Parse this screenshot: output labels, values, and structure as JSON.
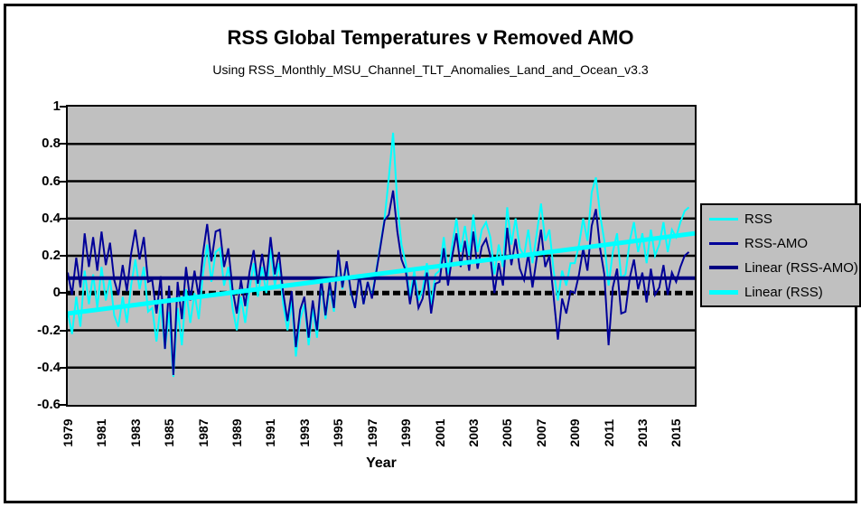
{
  "figure": {
    "title": "RSS Global Temperatures v Removed AMO",
    "subtitle": "Using RSS_Monthly_MSU_Channel_TLT_Anomalies_Land_and_Ocean_v3.3",
    "x_axis_title": "Year"
  },
  "colors": {
    "plot_background": "#C0C0C0",
    "legend_background": "#C0C0C0",
    "gridline": "#000000",
    "zero_line": "#000000",
    "rss": "#00FFFF",
    "rss_amo": "#000099",
    "linear_rss_amo": "#000080",
    "linear_rss": "#00FFFF",
    "frame_border": "#000000"
  },
  "legend": {
    "items": [
      {
        "label": "RSS",
        "color": "#00FFFF",
        "thickness": 3
      },
      {
        "label": "RSS-AMO",
        "color": "#000099",
        "thickness": 3
      },
      {
        "label": "Linear (RSS-AMO)",
        "color": "#000080",
        "thickness": 4
      },
      {
        "label": "Linear (RSS)",
        "color": "#00FFFF",
        "thickness": 5
      }
    ]
  },
  "chart_data": {
    "type": "line",
    "title": "RSS Global Temperatures v Removed AMO",
    "subtitle": "Using RSS_Monthly_MSU_Channel_TLT_Anomalies_Land_and_Ocean_v3.3",
    "xlabel": "Year",
    "ylabel": "",
    "ylim": [
      -0.6,
      1
    ],
    "xlim": [
      1979,
      2016.1
    ],
    "grid": true,
    "legend_position": "right",
    "ytick_labels": [
      "1",
      "0.8",
      "0.6",
      "0.4",
      "0.2",
      "0",
      "-0.2",
      "-0.4",
      "-0.6"
    ],
    "ytick_values": [
      1,
      0.8,
      0.6,
      0.4,
      0.2,
      0,
      -0.2,
      -0.4,
      -0.6
    ],
    "gridline_values": [
      0.8,
      0.6,
      0.4,
      0.2,
      -0.2,
      -0.4
    ],
    "zero_line": {
      "value": 0,
      "style": "thick-dashed-black"
    },
    "xtick_years": [
      1979,
      1981,
      1983,
      1985,
      1987,
      1989,
      1991,
      1993,
      1995,
      1997,
      1999,
      2001,
      2003,
      2005,
      2007,
      2009,
      2011,
      2013,
      2015
    ],
    "x_start": 1979,
    "x_step_years": 0.25,
    "resolution": "quarterly estimates read from plotted monthly curves",
    "series": [
      {
        "name": "RSS",
        "color": "#00FFFF",
        "width": 2,
        "values": [
          -0.1,
          -0.22,
          -0.02,
          -0.18,
          0.12,
          -0.06,
          0.1,
          -0.08,
          0.14,
          -0.04,
          0.08,
          -0.12,
          -0.18,
          -0.02,
          -0.16,
          0.04,
          0.18,
          0.02,
          0.14,
          -0.1,
          -0.08,
          -0.26,
          -0.06,
          -0.3,
          -0.1,
          -0.45,
          -0.08,
          -0.28,
          0.02,
          -0.16,
          0.0,
          -0.14,
          0.1,
          0.26,
          0.06,
          0.22,
          0.24,
          0.04,
          0.14,
          -0.08,
          -0.2,
          -0.02,
          -0.16,
          0.02,
          0.16,
          -0.02,
          0.14,
          0.0,
          0.24,
          0.04,
          0.16,
          -0.06,
          -0.2,
          -0.04,
          -0.34,
          -0.14,
          -0.06,
          -0.28,
          -0.08,
          -0.24,
          0.06,
          -0.14,
          0.04,
          -0.1,
          0.22,
          0.02,
          0.16,
          0.0,
          -0.08,
          0.1,
          -0.06,
          0.06,
          -0.02,
          0.12,
          0.26,
          0.4,
          0.62,
          0.86,
          0.48,
          0.26,
          0.16,
          -0.02,
          0.12,
          -0.04,
          0.02,
          0.16,
          -0.06,
          0.1,
          0.12,
          0.3,
          0.1,
          0.26,
          0.4,
          0.22,
          0.36,
          0.2,
          0.42,
          0.22,
          0.34,
          0.38,
          0.3,
          0.1,
          0.26,
          0.14,
          0.46,
          0.26,
          0.4,
          0.24,
          0.2,
          0.34,
          0.16,
          0.32,
          0.48,
          0.28,
          0.34,
          0.12,
          -0.04,
          0.12,
          0.04,
          0.16,
          0.16,
          0.26,
          0.4,
          0.28,
          0.54,
          0.62,
          0.42,
          0.28,
          0.04,
          0.22,
          0.32,
          0.08,
          0.1,
          0.28,
          0.38,
          0.22,
          0.32,
          0.16,
          0.34,
          0.2,
          0.26,
          0.38,
          0.22,
          0.34,
          0.3,
          0.38,
          0.44,
          0.46
        ]
      },
      {
        "name": "RSS-AMO",
        "color": "#000099",
        "width": 2,
        "values": [
          0.11,
          -0.01,
          0.19,
          0.03,
          0.32,
          0.14,
          0.3,
          0.12,
          0.33,
          0.15,
          0.27,
          0.07,
          -0.01,
          0.15,
          0.01,
          0.21,
          0.34,
          0.18,
          0.3,
          0.06,
          0.07,
          -0.11,
          0.09,
          -0.3,
          0.04,
          -0.44,
          0.06,
          -0.14,
          0.14,
          -0.04,
          0.12,
          -0.02,
          0.21,
          0.37,
          0.17,
          0.33,
          0.34,
          0.14,
          0.24,
          0.02,
          -0.11,
          0.07,
          -0.07,
          0.11,
          0.23,
          0.05,
          0.21,
          0.07,
          0.3,
          0.1,
          0.22,
          0.0,
          -0.15,
          0.01,
          -0.29,
          -0.09,
          -0.02,
          -0.24,
          -0.04,
          -0.2,
          0.08,
          -0.12,
          0.06,
          -0.08,
          0.23,
          0.03,
          0.17,
          0.01,
          -0.08,
          0.1,
          -0.06,
          0.06,
          -0.03,
          0.11,
          0.25,
          0.39,
          0.42,
          0.55,
          0.33,
          0.18,
          0.12,
          -0.06,
          0.08,
          -0.08,
          -0.03,
          0.11,
          -0.11,
          0.05,
          0.06,
          0.24,
          0.04,
          0.2,
          0.32,
          0.14,
          0.28,
          0.12,
          0.33,
          0.13,
          0.25,
          0.29,
          0.2,
          0.0,
          0.16,
          0.04,
          0.35,
          0.15,
          0.29,
          0.13,
          0.07,
          0.21,
          0.03,
          0.19,
          0.34,
          0.14,
          0.2,
          -0.02,
          -0.25,
          -0.03,
          -0.11,
          0.01,
          0.0,
          0.1,
          0.24,
          0.12,
          0.36,
          0.45,
          0.24,
          0.1,
          -0.28,
          0.03,
          0.13,
          -0.11,
          -0.1,
          0.08,
          0.18,
          0.02,
          0.11,
          -0.05,
          0.13,
          -0.01,
          0.03,
          0.15,
          -0.01,
          0.11,
          0.06,
          0.14,
          0.2,
          0.22
        ]
      },
      {
        "name": "Linear (RSS-AMO)",
        "color": "#000080",
        "width": 4,
        "trend": {
          "x": [
            1979,
            2016.1
          ],
          "y": [
            0.08,
            0.08
          ]
        }
      },
      {
        "name": "Linear (RSS)",
        "color": "#00FFFF",
        "width": 5,
        "trend": {
          "x": [
            1979,
            2016.1
          ],
          "y": [
            -0.11,
            0.32
          ]
        }
      }
    ]
  }
}
